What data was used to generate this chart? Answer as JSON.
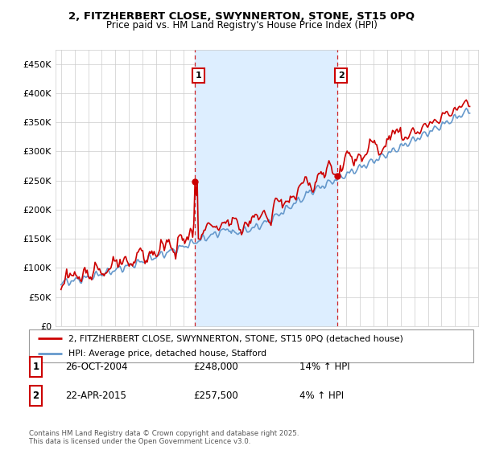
{
  "title": "2, FITZHERBERT CLOSE, SWYNNERTON, STONE, ST15 0PQ",
  "subtitle": "Price paid vs. HM Land Registry's House Price Index (HPI)",
  "legend_line1": "2, FITZHERBERT CLOSE, SWYNNERTON, STONE, ST15 0PQ (detached house)",
  "legend_line2": "HPI: Average price, detached house, Stafford",
  "annotation1_label": "1",
  "annotation1_date": "26-OCT-2004",
  "annotation1_price": "£248,000",
  "annotation1_hpi": "14% ↑ HPI",
  "annotation2_label": "2",
  "annotation2_date": "22-APR-2015",
  "annotation2_price": "£257,500",
  "annotation2_hpi": "4% ↑ HPI",
  "footer": "Contains HM Land Registry data © Crown copyright and database right 2025.\nThis data is licensed under the Open Government Licence v3.0.",
  "hpi_color": "#6699cc",
  "hpi_fill_color": "#ddeeff",
  "price_color": "#cc0000",
  "annotation_color": "#cc0000",
  "background_color": "#ffffff",
  "grid_color": "#cccccc",
  "ylim": [
    0,
    475000
  ],
  "yticks": [
    0,
    50000,
    100000,
    150000,
    200000,
    250000,
    300000,
    350000,
    400000,
    450000
  ],
  "sale1_year": 2004.82,
  "sale1_price": 248000,
  "sale2_year": 2015.31,
  "sale2_price": 257500
}
